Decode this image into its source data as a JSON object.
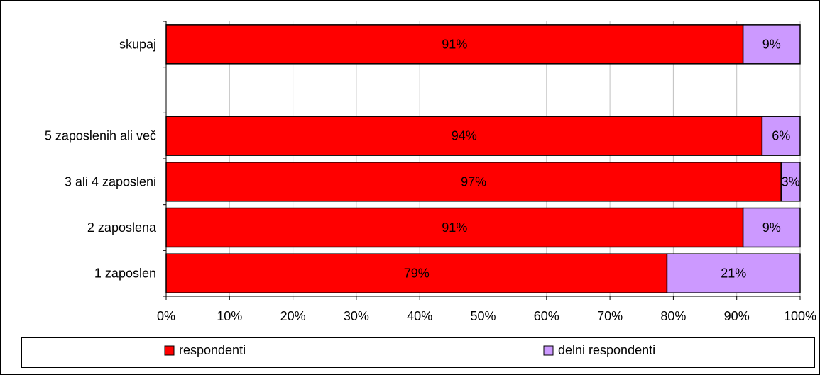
{
  "chart_data": {
    "type": "bar",
    "orientation": "horizontal",
    "stacked": "percent",
    "categories": [
      "skupaj",
      "",
      "5 zaposlenih ali več",
      "3 ali 4 zaposleni",
      "2 zaposlena",
      "1 zaposlen"
    ],
    "series": [
      {
        "name": "respondenti",
        "color": "#ff0000",
        "values": [
          91,
          null,
          94,
          97,
          91,
          79
        ],
        "labels": [
          "91%",
          "",
          "94%",
          "97%",
          "91%",
          "79%"
        ]
      },
      {
        "name": "delni respondenti",
        "color": "#cc99ff",
        "values": [
          9,
          null,
          6,
          3,
          9,
          21
        ],
        "labels": [
          "9%",
          "",
          "6%",
          "3%",
          "9%",
          "21%"
        ]
      }
    ],
    "x_ticks": [
      "0%",
      "10%",
      "20%",
      "30%",
      "40%",
      "50%",
      "60%",
      "70%",
      "80%",
      "90%",
      "100%"
    ],
    "xlim": [
      0,
      100
    ],
    "grid": true,
    "legend": {
      "position": "bottom",
      "entries": [
        "respondenti",
        "delni respondenti"
      ]
    }
  }
}
